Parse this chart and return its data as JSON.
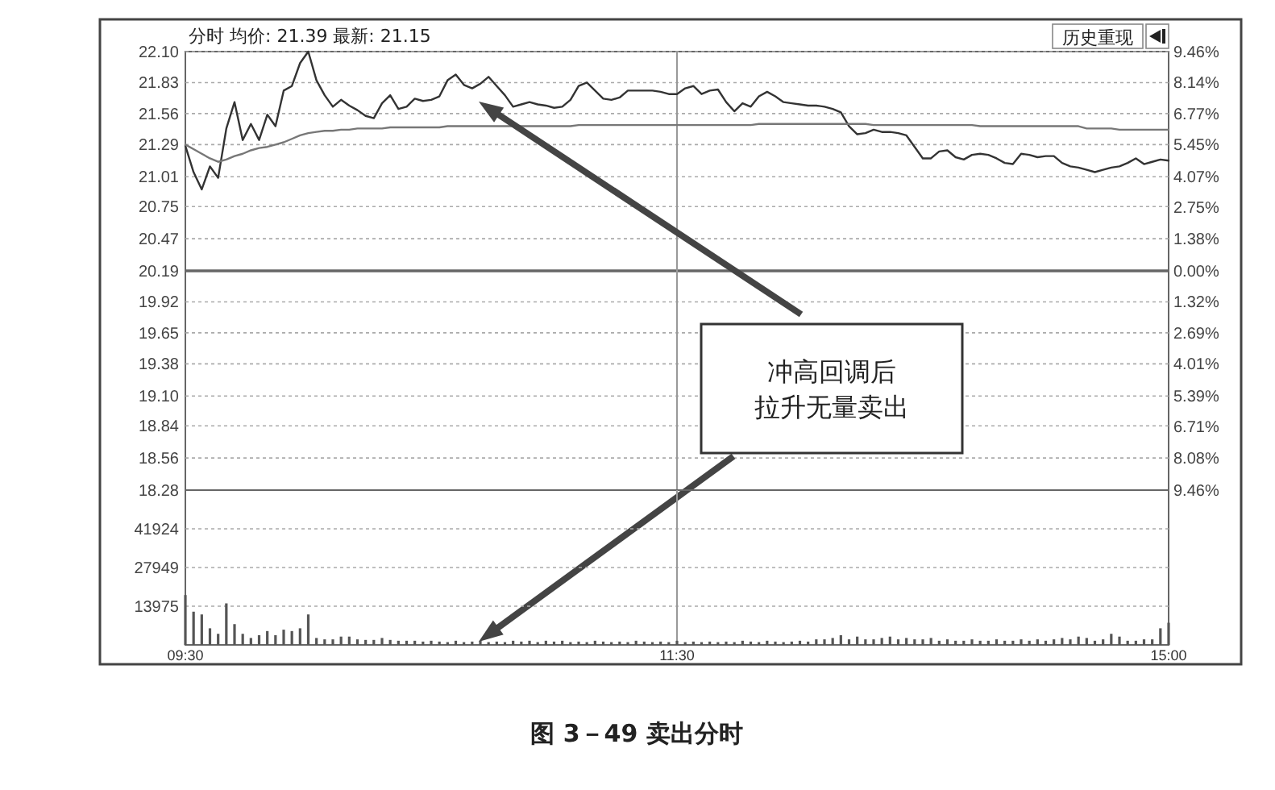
{
  "chart_data": [
    {
      "type": "line",
      "title": "分时 均价: 21.39 最新: 21.15",
      "categories": [
        "09:30",
        null,
        null,
        null,
        null,
        null,
        null,
        null,
        null,
        null,
        null,
        null,
        null,
        null,
        null,
        null,
        null,
        null,
        null,
        null,
        null,
        null,
        null,
        null,
        null,
        null,
        null,
        null,
        null,
        null,
        null,
        null,
        null,
        null,
        null,
        null,
        null,
        null,
        null,
        null,
        null,
        null,
        null,
        null,
        null,
        null,
        null,
        null,
        null,
        null,
        null,
        null,
        null,
        null,
        null,
        null,
        null,
        null,
        null,
        null,
        "11:30",
        null,
        null,
        null,
        null,
        null,
        null,
        null,
        null,
        null,
        null,
        null,
        null,
        null,
        null,
        null,
        null,
        null,
        null,
        null,
        null,
        null,
        null,
        null,
        null,
        null,
        null,
        null,
        null,
        null,
        null,
        null,
        null,
        null,
        null,
        null,
        null,
        null,
        null,
        null,
        null,
        null,
        null,
        null,
        null,
        null,
        null,
        null,
        null,
        null,
        null,
        null,
        null,
        null,
        null,
        null,
        null,
        null,
        null,
        null,
        "15:00"
      ],
      "series": [
        {
          "color": "#333333",
          "values": [
            21.28,
            21.05,
            20.9,
            21.1,
            21.0,
            21.43,
            21.66,
            21.33,
            21.47,
            21.33,
            21.55,
            21.45,
            21.76,
            21.8,
            22.0,
            22.1,
            21.85,
            21.72,
            21.62,
            21.68,
            21.63,
            21.59,
            21.54,
            21.52,
            21.65,
            21.72,
            21.6,
            21.62,
            21.69,
            21.67,
            21.68,
            21.71,
            21.85,
            21.9,
            21.81,
            21.78,
            21.82,
            21.88,
            21.8,
            21.72,
            21.62,
            21.64,
            21.66,
            21.64,
            21.63,
            21.61,
            21.62,
            21.68,
            21.8,
            21.83,
            21.76,
            21.69,
            21.68,
            21.7,
            21.76,
            21.76,
            21.76,
            21.76,
            21.75,
            21.73,
            21.73,
            21.78,
            21.8,
            21.73,
            21.76,
            21.77,
            21.66,
            21.58,
            21.65,
            21.62,
            21.71,
            21.75,
            21.71,
            21.66,
            21.65,
            21.64,
            21.63,
            21.63,
            21.62,
            21.6,
            21.57,
            21.45,
            21.38,
            21.39,
            21.42,
            21.4,
            21.4,
            21.39,
            21.37,
            21.27,
            21.17,
            21.17,
            21.23,
            21.24,
            21.18,
            21.16,
            21.2,
            21.21,
            21.2,
            21.17,
            21.13,
            21.12,
            21.21,
            21.2,
            21.18,
            21.19,
            21.19,
            21.13,
            21.1,
            21.09,
            21.07,
            21.05,
            21.07,
            21.09,
            21.1,
            21.13,
            21.17,
            21.12,
            21.14,
            21.16,
            21.15
          ]
        },
        {
          "color": "#777777",
          "values": [
            21.29,
            21.25,
            21.21,
            21.17,
            21.14,
            21.16,
            21.19,
            21.21,
            21.24,
            21.26,
            21.27,
            21.29,
            21.31,
            21.34,
            21.37,
            21.39,
            21.4,
            21.41,
            21.41,
            21.42,
            21.42,
            21.43,
            21.43,
            21.43,
            21.43,
            21.44,
            21.44,
            21.44,
            21.44,
            21.44,
            21.44,
            21.44,
            21.45,
            21.45,
            21.45,
            21.45,
            21.45,
            21.45,
            21.45,
            21.45,
            21.45,
            21.45,
            21.45,
            21.45,
            21.45,
            21.45,
            21.45,
            21.45,
            21.46,
            21.46,
            21.46,
            21.46,
            21.46,
            21.46,
            21.46,
            21.46,
            21.46,
            21.46,
            21.46,
            21.46,
            21.46,
            21.46,
            21.46,
            21.46,
            21.46,
            21.46,
            21.46,
            21.46,
            21.46,
            21.46,
            21.47,
            21.47,
            21.47,
            21.47,
            21.47,
            21.47,
            21.47,
            21.47,
            21.47,
            21.47,
            21.47,
            21.47,
            21.47,
            21.47,
            21.46,
            21.46,
            21.46,
            21.46,
            21.46,
            21.46,
            21.46,
            21.46,
            21.46,
            21.46,
            21.46,
            21.46,
            21.46,
            21.45,
            21.45,
            21.45,
            21.45,
            21.45,
            21.45,
            21.45,
            21.45,
            21.45,
            21.45,
            21.45,
            21.45,
            21.45,
            21.43,
            21.43,
            21.43,
            21.43,
            21.42,
            21.42,
            21.42,
            21.42,
            21.42,
            21.42,
            21.42
          ]
        }
      ],
      "ylim": [
        18.28,
        22.1
      ],
      "yticks": [
        {
          "value": 22.1,
          "label": "22.10"
        },
        21.83,
        21.56,
        21.29,
        21.01,
        20.75,
        20.47,
        20.19,
        19.92,
        19.65,
        19.38,
        {
          "value": 19.1,
          "label": "19.10"
        },
        18.84,
        18.56,
        18.28
      ],
      "y2lim": [
        -9.46,
        9.46
      ],
      "y2ticks": [
        {
          "value": 9.46,
          "label": "9.46%"
        },
        {
          "value": 8.14,
          "label": "8.14%"
        },
        {
          "value": 6.77,
          "label": "6.77%"
        },
        {
          "value": 5.45,
          "label": "5.45%"
        },
        {
          "value": 4.07,
          "label": "4.07%"
        },
        {
          "value": 2.75,
          "label": "2.75%"
        },
        {
          "value": 1.38,
          "label": "1.38%"
        },
        {
          "value": 0,
          "label": "0.00%"
        },
        {
          "value": -1.32,
          "label": "1.32%"
        },
        {
          "value": -2.69,
          "label": "2.69%"
        },
        {
          "value": -4.01,
          "label": "4.01%"
        },
        {
          "value": -5.39,
          "label": "5.39%"
        },
        {
          "value": -6.71,
          "label": "6.71%"
        },
        {
          "value": -8.08,
          "label": "8.08%"
        },
        {
          "value": -9.46,
          "label": "9.46%"
        }
      ],
      "ref_lines": [
        {
          "axis": "y",
          "value": 20.19
        },
        {
          "axis": "x",
          "value": "11:30"
        }
      ],
      "grid": "y",
      "tick_labels": "y",
      "annotations": [
        "冲高回调后",
        "拉升无量卖出",
        "历史重现"
      ]
    },
    {
      "type": "bar",
      "color": "#555555",
      "categories": [
        "09:30",
        null,
        null,
        null,
        null,
        null,
        null,
        null,
        null,
        null,
        null,
        null,
        null,
        null,
        null,
        null,
        null,
        null,
        null,
        null,
        null,
        null,
        null,
        null,
        null,
        null,
        null,
        null,
        null,
        null,
        null,
        null,
        null,
        null,
        null,
        null,
        null,
        null,
        null,
        null,
        null,
        null,
        null,
        null,
        null,
        null,
        null,
        null,
        null,
        null,
        null,
        null,
        null,
        null,
        null,
        null,
        null,
        null,
        null,
        null,
        "11:30",
        null,
        null,
        null,
        null,
        null,
        null,
        null,
        null,
        null,
        null,
        null,
        null,
        null,
        null,
        null,
        null,
        null,
        null,
        null,
        null,
        null,
        null,
        null,
        null,
        null,
        null,
        null,
        null,
        null,
        null,
        null,
        null,
        null,
        null,
        null,
        null,
        null,
        null,
        null,
        null,
        null,
        null,
        null,
        null,
        null,
        null,
        null,
        null,
        null,
        null,
        null,
        null,
        null,
        null,
        null,
        null,
        null,
        null,
        null,
        "15:00"
      ],
      "values": [
        18000,
        12000,
        11000,
        6000,
        4000,
        15000,
        7500,
        4000,
        2500,
        3500,
        5000,
        3500,
        5500,
        5000,
        6000,
        11000,
        2500,
        2000,
        2000,
        3000,
        3000,
        2000,
        1800,
        1800,
        2500,
        1800,
        1500,
        1500,
        1500,
        1200,
        1500,
        1200,
        1000,
        1500,
        1000,
        1200,
        1500,
        1000,
        1200,
        1000,
        1500,
        1200,
        1500,
        1000,
        1500,
        1200,
        1500,
        1000,
        1200,
        1000,
        1500,
        1200,
        1000,
        1200,
        1000,
        1500,
        1200,
        1000,
        1200,
        1000,
        1500,
        1000,
        1200,
        1000,
        1200,
        1000,
        1200,
        1000,
        1500,
        1200,
        1000,
        1500,
        1200,
        1000,
        1200,
        1500,
        1200,
        2000,
        2000,
        2500,
        3500,
        2000,
        3000,
        2000,
        2000,
        2500,
        3000,
        2000,
        2500,
        2000,
        2000,
        2500,
        1500,
        2000,
        1500,
        1500,
        2000,
        1500,
        1500,
        2000,
        1500,
        1500,
        2000,
        1500,
        2000,
        1500,
        2000,
        2500,
        2000,
        3000,
        2500,
        1500,
        2000,
        4000,
        3000,
        1500,
        1500,
        2000,
        2000,
        6000,
        8000
      ],
      "ylim": [
        0,
        55899
      ],
      "yticks": [
        13975,
        27949,
        41924
      ],
      "ref_lines": [
        {
          "axis": "x",
          "value": "11:30"
        }
      ],
      "grid": "y",
      "annotations": [
        "图 3－49 卖出分时"
      ]
    }
  ]
}
